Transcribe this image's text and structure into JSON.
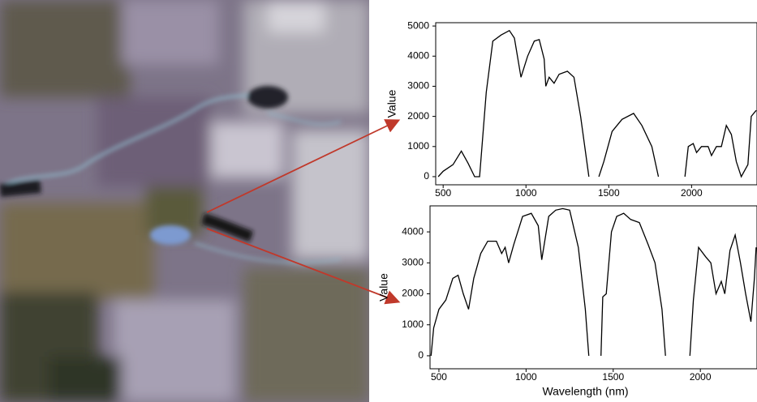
{
  "chart_data": [
    {
      "type": "line",
      "y_label": "Value",
      "color": "#000000",
      "xlim": [
        455,
        2395
      ],
      "ylim": [
        -270,
        5110
      ],
      "xticks": [
        500,
        1000,
        1500,
        2000
      ],
      "yticks": [
        0,
        1000,
        2000,
        3000,
        4000,
        5000
      ],
      "x": [
        470,
        500,
        560,
        610,
        650,
        690,
        720,
        760,
        800,
        850,
        900,
        930,
        970,
        1010,
        1050,
        1080,
        1110,
        1120,
        1140,
        1170,
        1200,
        1250,
        1290,
        1330,
        1380,
        1410,
        1440,
        1470,
        1520,
        1580,
        1650,
        1700,
        1760,
        1800,
        1880,
        1960,
        1980,
        2010,
        2030,
        2060,
        2100,
        2120,
        2150,
        2180,
        2210,
        2240,
        2270,
        2300,
        2340,
        2360,
        2390
      ],
      "values": [
        0,
        180,
        400,
        850,
        450,
        0,
        0,
        2800,
        4500,
        4700,
        4850,
        4600,
        3300,
        4000,
        4500,
        4550,
        3900,
        3000,
        3300,
        3100,
        3400,
        3500,
        3300,
        2000,
        0,
        null,
        0,
        500,
        1500,
        1900,
        2100,
        1700,
        1000,
        0,
        null,
        0,
        1000,
        1100,
        800,
        1000,
        1000,
        700,
        1000,
        1000,
        1700,
        1400,
        500,
        0,
        400,
        2000,
        2200
      ]
    },
    {
      "type": "line",
      "y_label": "Value",
      "x_label": "Wavelength (nm)",
      "color": "#000000",
      "xlim": [
        449,
        2325
      ],
      "ylim": [
        -420,
        4840
      ],
      "xticks": [
        500,
        1000,
        1500,
        2000
      ],
      "yticks": [
        0,
        1000,
        2000,
        3000,
        4000
      ],
      "x": [
        455,
        470,
        500,
        540,
        580,
        610,
        640,
        670,
        700,
        740,
        780,
        830,
        860,
        880,
        900,
        930,
        980,
        1030,
        1070,
        1090,
        1130,
        1170,
        1210,
        1250,
        1300,
        1340,
        1360,
        1400,
        1430,
        1440,
        1460,
        1490,
        1520,
        1560,
        1600,
        1650,
        1700,
        1740,
        1780,
        1800,
        1870,
        1940,
        1960,
        1990,
        2030,
        2060,
        2090,
        2120,
        2140,
        2170,
        2200,
        2230,
        2260,
        2290,
        2310,
        2320
      ],
      "values": [
        0,
        900,
        1500,
        1800,
        2500,
        2600,
        2000,
        1500,
        2500,
        3300,
        3700,
        3700,
        3300,
        3500,
        3000,
        3600,
        4500,
        4600,
        4200,
        3100,
        4500,
        4700,
        4750,
        4700,
        3500,
        1500,
        0,
        null,
        0,
        1900,
        2000,
        4000,
        4500,
        4600,
        4400,
        4300,
        3600,
        3000,
        1500,
        0,
        null,
        0,
        1800,
        3500,
        3200,
        3000,
        2000,
        2400,
        2000,
        3400,
        3900,
        3000,
        2000,
        1100,
        2500,
        3500
      ]
    }
  ]
}
